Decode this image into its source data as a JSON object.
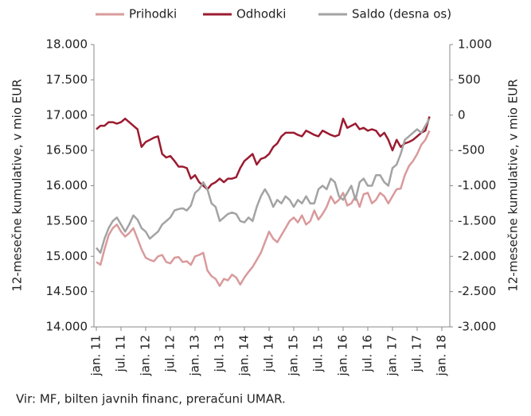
{
  "chart_data": {
    "type": "line",
    "y_label": "12-mesečne kumulative, v mio EUR",
    "y2_label": "12-mesečne kumulative, v mio EUR",
    "source": "Vir: MF, bilten javnih financ, preračuni UMAR.",
    "legend": "top",
    "categories": [
      "jan. 11",
      null,
      null,
      null,
      null,
      null,
      "jul. 11",
      null,
      null,
      null,
      null,
      null,
      "jan. 12",
      null,
      null,
      null,
      null,
      null,
      "jul. 12",
      null,
      null,
      null,
      null,
      null,
      "jan. 13",
      null,
      null,
      null,
      null,
      null,
      "jul. 13",
      null,
      null,
      null,
      null,
      null,
      "jan. 14",
      null,
      null,
      null,
      null,
      null,
      "jul. 14",
      null,
      null,
      null,
      null,
      null,
      "jan. 15",
      null,
      null,
      null,
      null,
      null,
      "jul. 15",
      null,
      null,
      null,
      null,
      null,
      "jan. 16",
      null,
      null,
      null,
      null,
      null,
      "jul. 16",
      null,
      null,
      null,
      null,
      null,
      "jan. 17",
      null,
      null,
      null,
      null,
      null,
      "jul. 17",
      null,
      null,
      null,
      null,
      null,
      "jan. 18"
    ],
    "series": [
      {
        "name": "Prihodki",
        "color": "#d99a9c",
        "values": [
          14920,
          14880,
          15100,
          15300,
          15400,
          15450,
          15350,
          15280,
          15330,
          15400,
          15250,
          15100,
          14980,
          14950,
          14930,
          15000,
          15020,
          14920,
          14900,
          14980,
          14990,
          14920,
          14930,
          14880,
          15000,
          15020,
          15050,
          14800,
          14720,
          14680,
          14580,
          14680,
          14660,
          14740,
          14700,
          14600,
          14700,
          14780,
          14850,
          14950,
          15050,
          15200,
          15350,
          15250,
          15200,
          15300,
          15400,
          15500,
          15550,
          15480,
          15580,
          15450,
          15500,
          15650,
          15520,
          15600,
          15700,
          15850,
          15750,
          15800,
          15900,
          15720,
          15750,
          15850,
          15700,
          15880,
          15900,
          15750,
          15800,
          15900,
          15850,
          15750,
          15850,
          15950,
          15960,
          16150,
          16280,
          16350,
          16450,
          16580,
          16650,
          16780,
          null,
          null,
          null
        ]
      },
      {
        "name": "Odhodki",
        "color": "#9b1b30",
        "values": [
          16800,
          16850,
          16850,
          16900,
          16900,
          16880,
          16900,
          16950,
          16900,
          16850,
          16800,
          16550,
          16620,
          16650,
          16680,
          16700,
          16450,
          16400,
          16420,
          16350,
          16270,
          16270,
          16250,
          16100,
          16150,
          16050,
          16000,
          15950,
          16020,
          16050,
          16100,
          16050,
          16100,
          16100,
          16120,
          16250,
          16350,
          16400,
          16450,
          16300,
          16380,
          16400,
          16450,
          16550,
          16600,
          16700,
          16750,
          16750,
          16750,
          16720,
          16700,
          16780,
          16750,
          16720,
          16700,
          16780,
          16750,
          16720,
          16700,
          16720,
          16950,
          16820,
          16850,
          16880,
          16800,
          16820,
          16780,
          16800,
          16780,
          16700,
          16750,
          16650,
          16500,
          16650,
          16550,
          16600,
          16620,
          16650,
          16700,
          16750,
          16780,
          16980,
          null,
          null,
          null
        ]
      },
      {
        "name": "Saldo (desna os)",
        "color": "#a3a3a3",
        "axis": "y2",
        "values": [
          -1880,
          -1950,
          -1750,
          -1600,
          -1500,
          -1450,
          -1550,
          -1650,
          -1550,
          -1420,
          -1480,
          -1600,
          -1650,
          -1750,
          -1700,
          -1650,
          -1550,
          -1500,
          -1450,
          -1350,
          -1330,
          -1320,
          -1350,
          -1280,
          -1100,
          -1050,
          -950,
          -1050,
          -1250,
          -1300,
          -1500,
          -1450,
          -1400,
          -1380,
          -1400,
          -1500,
          -1520,
          -1450,
          -1500,
          -1300,
          -1150,
          -1050,
          -1150,
          -1300,
          -1200,
          -1250,
          -1150,
          -1200,
          -1300,
          -1200,
          -1250,
          -1150,
          -1250,
          -1250,
          -1050,
          -1000,
          -1050,
          -900,
          -950,
          -1150,
          -1200,
          -1100,
          -1000,
          -1200,
          -950,
          -900,
          -1000,
          -1000,
          -850,
          -850,
          -950,
          -1000,
          -750,
          -700,
          -550,
          -350,
          -300,
          -250,
          -200,
          -250,
          -150,
          -50,
          null,
          null,
          null
        ]
      }
    ],
    "ylim": [
      14000,
      18000
    ],
    "yticks": [
      {
        "value": 14000,
        "label": "14.000"
      },
      {
        "value": 14500,
        "label": "14.500"
      },
      {
        "value": 15000,
        "label": "15.000"
      },
      {
        "value": 15500,
        "label": "15.500"
      },
      {
        "value": 16000,
        "label": "16.000"
      },
      {
        "value": 16500,
        "label": "16.500"
      },
      {
        "value": 17000,
        "label": "17.000"
      },
      {
        "value": 17500,
        "label": "17.500"
      },
      {
        "value": 18000,
        "label": "18.000"
      }
    ],
    "y2lim": [
      -3000,
      1000
    ],
    "y2ticks": [
      {
        "value": -3000,
        "label": "-3.000"
      },
      {
        "value": -2500,
        "label": "-2.500"
      },
      {
        "value": -2000,
        "label": "-2.000"
      },
      {
        "value": -1500,
        "label": "-1.500"
      },
      {
        "value": -1000,
        "label": "-1.000"
      },
      -500,
      0,
      500,
      {
        "value": 1000,
        "label": "1.000"
      }
    ]
  }
}
